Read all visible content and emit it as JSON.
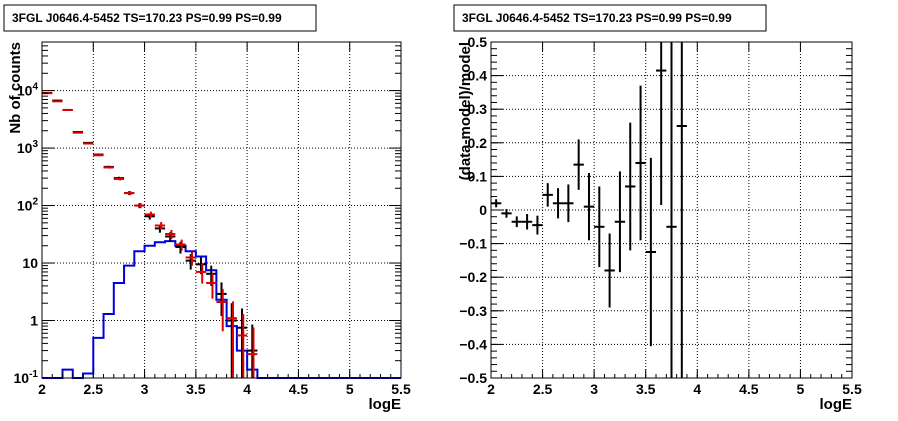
{
  "chart_data": [
    {
      "type": "line",
      "title": "3FGL J0646.4-5452 TS=170.23 PS=0.99 PS=0.99",
      "xlabel": "logE",
      "ylabel": "Nb of counts",
      "xlim": [
        2,
        5.5
      ],
      "ylim": [
        0.1,
        70000
      ],
      "yscale": "log",
      "grid": true,
      "x_ticks": [
        "2",
        "2.5",
        "3",
        "3.5",
        "4",
        "4.5",
        "5",
        "5.5"
      ],
      "y_ticks": [
        "10^-1",
        "1",
        "10",
        "10^2",
        "10^3",
        "10^4"
      ],
      "bin_width": 0.1,
      "x": [
        2.05,
        2.15,
        2.25,
        2.35,
        2.45,
        2.55,
        2.65,
        2.75,
        2.85,
        2.95,
        3.05,
        3.15,
        3.25,
        3.35,
        3.45,
        3.55,
        3.65,
        3.75,
        3.85,
        3.95,
        4.05,
        4.15,
        4.25,
        4.35,
        4.45,
        4.55,
        4.65,
        4.75,
        4.85,
        4.95,
        5.05,
        5.15,
        5.25,
        5.35,
        5.45
      ],
      "series": [
        {
          "color": "#000000",
          "style": "errorbars",
          "values": [
            9100,
            6700,
            4600,
            1900,
            1230,
            770,
            470,
            300,
            165,
            100,
            65,
            40,
            29,
            19,
            11,
            9.5,
            6.5,
            2.9,
            1.0,
            0.75,
            0.3,
            null,
            null,
            null,
            null,
            null,
            null,
            null,
            null,
            null,
            null,
            null,
            null,
            null,
            null
          ],
          "errors": [
            95,
            82,
            68,
            44,
            35,
            28,
            22,
            17,
            13,
            10,
            8,
            6.3,
            5.4,
            4.4,
            3.3,
            3.1,
            2.5,
            1.7,
            1.0,
            0.87,
            0.55,
            null,
            null,
            null,
            null,
            null,
            null,
            null,
            null,
            null,
            null,
            null,
            null,
            null,
            null
          ]
        },
        {
          "color": "#dd0000",
          "style": "errorbars",
          "values": [
            9000,
            6500,
            4600,
            1850,
            1200,
            750,
            460,
            290,
            165,
            100,
            70,
            45,
            32,
            21,
            12.5,
            7.0,
            4.5,
            2.1,
            1.1,
            0.55,
            0.26,
            null,
            null,
            null,
            null,
            null,
            null,
            null,
            null,
            null,
            null,
            null,
            null,
            null,
            null
          ],
          "errors": [
            95,
            81,
            68,
            43,
            35,
            27,
            21,
            17,
            13,
            10,
            8.4,
            6.7,
            5.7,
            4.6,
            3.5,
            2.6,
            2.1,
            1.45,
            1.05,
            0.74,
            0.5,
            null,
            null,
            null,
            null,
            null,
            null,
            null,
            null,
            null,
            null,
            null,
            null,
            null,
            null
          ]
        },
        {
          "color": "#0000dd",
          "style": "step",
          "values": [
            0.1,
            0.1,
            0.14,
            0.1,
            0.12,
            0.5,
            1.3,
            4.5,
            9,
            16,
            20,
            23,
            24,
            20,
            16,
            13,
            7.5,
            2.3,
            0.8,
            0.3,
            0.14,
            0.1,
            0.1,
            0.1,
            0.1,
            0.1,
            0.1,
            0.1,
            0.1,
            0.1,
            0.1,
            0.1,
            0.1,
            0.1,
            0.1
          ]
        }
      ]
    },
    {
      "type": "scatter",
      "title": "3FGL J0646.4-5452 TS=170.23 PS=0.99 PS=0.99",
      "xlabel": "logE",
      "ylabel": "(data-model)/model",
      "xlim": [
        2,
        5.5
      ],
      "ylim": [
        -0.5,
        0.5
      ],
      "grid": true,
      "x_ticks": [
        "2",
        "2.5",
        "3",
        "3.5",
        "4",
        "4.5",
        "5",
        "5.5"
      ],
      "y_ticks": [
        "−0.5",
        "−0.4",
        "−0.3",
        "−0.2",
        "−0.1",
        "0",
        "0.1",
        "0.2",
        "0.3",
        "0.4",
        "0.5"
      ],
      "bin_width": 0.1,
      "x": [
        2.05,
        2.15,
        2.25,
        2.35,
        2.45,
        2.55,
        2.65,
        2.75,
        2.85,
        2.95,
        3.05,
        3.15,
        3.25,
        3.35,
        3.45,
        3.55,
        3.65,
        3.75,
        3.85
      ],
      "values": [
        0.02,
        -0.01,
        -0.035,
        -0.035,
        -0.045,
        0.045,
        0.02,
        0.02,
        0.135,
        0.01,
        -0.05,
        -0.18,
        -0.035,
        0.07,
        0.14,
        -0.125,
        0.415,
        -0.05,
        0.25
      ],
      "errors": [
        0.012,
        0.013,
        0.016,
        0.023,
        0.028,
        0.035,
        0.045,
        0.056,
        0.075,
        0.1,
        0.12,
        0.11,
        0.15,
        0.19,
        0.23,
        0.28,
        0.4,
        0.6,
        0.8
      ]
    }
  ]
}
